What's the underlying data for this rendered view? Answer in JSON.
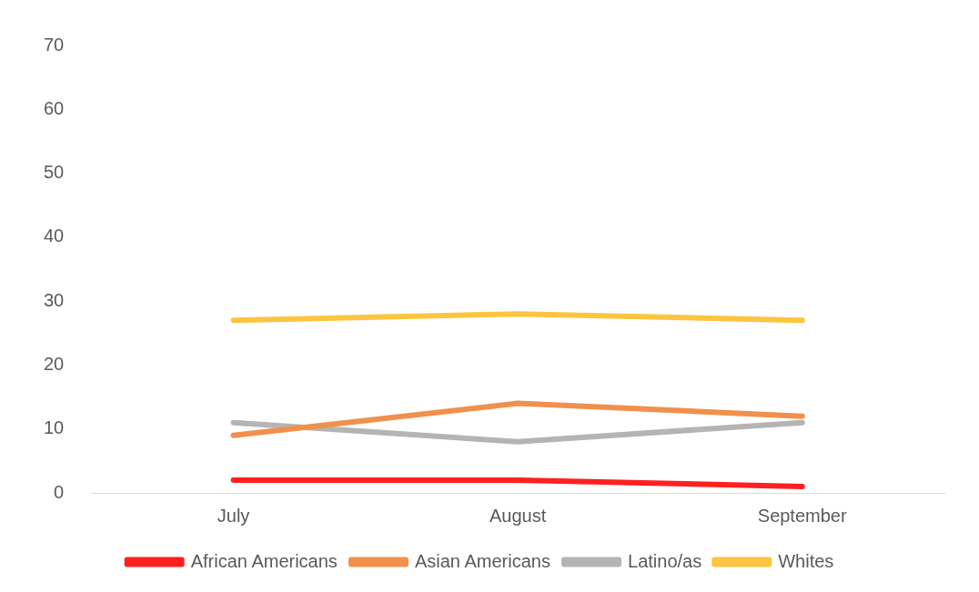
{
  "chart_data": {
    "type": "line",
    "categories": [
      "July",
      "August",
      "September"
    ],
    "series": [
      {
        "name": "African Americans",
        "color": "#ff2020",
        "values": [
          2,
          2,
          1
        ]
      },
      {
        "name": "Asian Americans",
        "color": "#f0904c",
        "values": [
          9,
          14,
          12
        ]
      },
      {
        "name": "Latino/as",
        "color": "#b4b4b4",
        "values": [
          11,
          8,
          11
        ]
      },
      {
        "name": "Whites",
        "color": "#fcc540",
        "values": [
          27,
          28,
          27
        ]
      }
    ],
    "ylim": [
      0,
      70
    ],
    "yticks": [
      0,
      10,
      20,
      30,
      40,
      50,
      60,
      70
    ],
    "grid": false,
    "legend": "bottom",
    "marker": "none",
    "line_style": "solid"
  }
}
